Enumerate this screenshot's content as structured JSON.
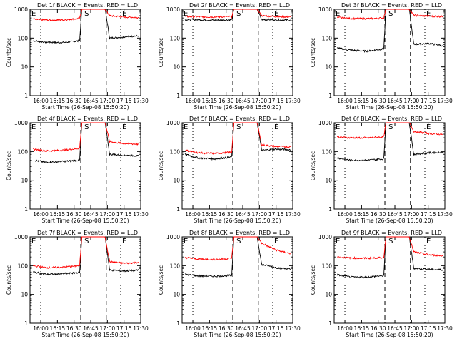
{
  "colors": {
    "events": "#000000",
    "lld": "#ff0000",
    "axes": "#000000",
    "background": "#ffffff"
  },
  "chart_data": [
    {
      "type": "line",
      "title": "Det 1f BLACK = Events, RED = LLD",
      "xlabel": "Start Time (26-Sep-08 15:50:20)",
      "ylabel": "Counts/sec",
      "y_scale": "log",
      "ylim": [
        1,
        1000
      ],
      "xlim": [
        "15:50:20",
        "17:30"
      ],
      "x_ticks": [
        "16:00",
        "16:15",
        "16:30",
        "16:45",
        "17:00",
        "17:15",
        "17:30"
      ],
      "y_ticks": [
        "1",
        "10",
        "100",
        "1000"
      ],
      "markers": [
        {
          "label": "E",
          "time": "15:50:20",
          "style": "none"
        },
        {
          "label": "",
          "time": "16:00",
          "style": "dotted"
        },
        {
          "label": "",
          "time": "16:36",
          "style": "dashed"
        },
        {
          "label": "S",
          "time": "16:38",
          "style": "none"
        },
        {
          "label": "",
          "time": "16:59",
          "style": "dashed"
        },
        {
          "label": "E",
          "time": "17:12",
          "style": "dotted"
        }
      ],
      "series": [
        {
          "name": "Events",
          "color": "#000000",
          "x": [
            "15:53",
            "16:05",
            "16:20",
            "16:35",
            "16:37",
            "16:58",
            "17:02",
            "17:15",
            "17:28"
          ],
          "y": [
            80,
            72,
            70,
            80,
            1000,
            1000,
            100,
            110,
            120
          ]
        },
        {
          "name": "LLD",
          "color": "#ff0000",
          "x": [
            "15:53",
            "16:05",
            "16:20",
            "16:35",
            "16:37",
            "16:58",
            "17:02",
            "17:15",
            "17:28"
          ],
          "y": [
            450,
            420,
            430,
            480,
            1000,
            1000,
            600,
            540,
            520
          ]
        }
      ]
    },
    {
      "type": "line",
      "title": "Det 2f BLACK = Events, RED = LLD",
      "xlabel": "Start Time (26-Sep-08 15:50:20)",
      "ylabel": "Counts/sec",
      "y_scale": "log",
      "ylim": [
        1,
        1000
      ],
      "xlim": [
        "15:50:20",
        "17:30"
      ],
      "x_ticks": [
        "16:00",
        "16:15",
        "16:30",
        "16:45",
        "17:00",
        "17:15",
        "17:30"
      ],
      "y_ticks": [
        "1",
        "10",
        "100",
        "1000"
      ],
      "markers": [
        {
          "label": "E",
          "time": "15:50:20",
          "style": "none"
        },
        {
          "label": "",
          "time": "16:00",
          "style": "dotted"
        },
        {
          "label": "",
          "time": "16:36",
          "style": "dashed"
        },
        {
          "label": "S",
          "time": "16:38",
          "style": "none"
        },
        {
          "label": "",
          "time": "16:59",
          "style": "dashed"
        },
        {
          "label": "E",
          "time": "17:12",
          "style": "dotted"
        }
      ],
      "series": [
        {
          "name": "Events",
          "color": "#000000",
          "x": [
            "15:53",
            "16:05",
            "16:20",
            "16:35",
            "16:37",
            "16:58",
            "17:02",
            "17:15",
            "17:28"
          ],
          "y": [
            440,
            430,
            420,
            430,
            1000,
            1000,
            440,
            430,
            420
          ]
        },
        {
          "name": "LLD",
          "color": "#ff0000",
          "x": [
            "15:53",
            "16:05",
            "16:20",
            "16:35",
            "16:37",
            "16:58",
            "17:02",
            "17:15",
            "17:28"
          ],
          "y": [
            560,
            550,
            540,
            560,
            1000,
            1000,
            600,
            560,
            540
          ]
        }
      ]
    },
    {
      "type": "line",
      "title": "Det 3f BLACK = Events, RED = LLD",
      "xlabel": "Start Time (26-Sep-08 15:50:20)",
      "ylabel": "Counts/sec",
      "y_scale": "log",
      "ylim": [
        1,
        1000
      ],
      "xlim": [
        "15:50:20",
        "17:30"
      ],
      "x_ticks": [
        "16:00",
        "16:15",
        "16:30",
        "16:45",
        "17:00",
        "17:15",
        "17:30"
      ],
      "y_ticks": [
        "1",
        "10",
        "100",
        "1000"
      ],
      "markers": [
        {
          "label": "E",
          "time": "15:50:20",
          "style": "none"
        },
        {
          "label": "",
          "time": "16:00",
          "style": "dotted"
        },
        {
          "label": "",
          "time": "16:36",
          "style": "dashed"
        },
        {
          "label": "S",
          "time": "16:38",
          "style": "none"
        },
        {
          "label": "",
          "time": "16:59",
          "style": "dashed"
        },
        {
          "label": "E",
          "time": "17:12",
          "style": "dotted"
        }
      ],
      "series": [
        {
          "name": "Events",
          "color": "#000000",
          "x": [
            "15:53",
            "16:05",
            "16:20",
            "16:35",
            "16:37",
            "16:58",
            "17:02",
            "17:15",
            "17:28"
          ],
          "y": [
            45,
            38,
            35,
            42,
            1000,
            1000,
            60,
            65,
            55
          ]
        },
        {
          "name": "LLD",
          "color": "#ff0000",
          "x": [
            "15:53",
            "16:05",
            "16:20",
            "16:35",
            "16:37",
            "16:58",
            "17:02",
            "17:15",
            "17:28"
          ],
          "y": [
            520,
            480,
            470,
            500,
            1000,
            1000,
            620,
            580,
            560
          ]
        }
      ]
    },
    {
      "type": "line",
      "title": "Det 4f BLACK = Events, RED = LLD",
      "xlabel": "Start Time (26-Sep-08 15:50:20)",
      "ylabel": "Counts/sec",
      "y_scale": "log",
      "ylim": [
        1,
        1000
      ],
      "xlim": [
        "15:50:20",
        "17:30"
      ],
      "x_ticks": [
        "16:00",
        "16:15",
        "16:30",
        "16:45",
        "17:00",
        "17:15",
        "17:30"
      ],
      "y_ticks": [
        "1",
        "10",
        "100",
        "1000"
      ],
      "markers": [
        {
          "label": "E",
          "time": "15:50:20",
          "style": "none"
        },
        {
          "label": "",
          "time": "16:00",
          "style": "dotted"
        },
        {
          "label": "",
          "time": "16:36",
          "style": "dashed"
        },
        {
          "label": "S",
          "time": "16:38",
          "style": "none"
        },
        {
          "label": "",
          "time": "16:59",
          "style": "dashed"
        },
        {
          "label": "E",
          "time": "17:12",
          "style": "dotted"
        }
      ],
      "series": [
        {
          "name": "Events",
          "color": "#000000",
          "x": [
            "15:53",
            "16:05",
            "16:20",
            "16:35",
            "16:37",
            "16:58",
            "17:02",
            "17:15",
            "17:28"
          ],
          "y": [
            50,
            42,
            45,
            50,
            1000,
            1000,
            80,
            75,
            70
          ]
        },
        {
          "name": "LLD",
          "color": "#ff0000",
          "x": [
            "15:53",
            "16:05",
            "16:20",
            "16:35",
            "16:37",
            "16:58",
            "17:02",
            "17:15",
            "17:28"
          ],
          "y": [
            120,
            105,
            110,
            130,
            1000,
            1000,
            220,
            190,
            180
          ]
        }
      ]
    },
    {
      "type": "line",
      "title": "Det 5f BLACK = Events, RED = LLD",
      "xlabel": "Start Time (26-Sep-08 15:50:20)",
      "ylabel": "Counts/sec",
      "y_scale": "log",
      "ylim": [
        1,
        1000
      ],
      "xlim": [
        "15:50:20",
        "17:30"
      ],
      "x_ticks": [
        "16:00",
        "16:15",
        "16:30",
        "16:45",
        "17:00",
        "17:15",
        "17:30"
      ],
      "y_ticks": [
        "1",
        "10",
        "100",
        "1000"
      ],
      "markers": [
        {
          "label": "E",
          "time": "15:50:20",
          "style": "none"
        },
        {
          "label": "",
          "time": "16:00",
          "style": "dotted"
        },
        {
          "label": "",
          "time": "16:36",
          "style": "dashed"
        },
        {
          "label": "S",
          "time": "16:38",
          "style": "none"
        },
        {
          "label": "",
          "time": "16:59",
          "style": "dashed"
        },
        {
          "label": "E",
          "time": "17:12",
          "style": "dotted"
        }
      ],
      "series": [
        {
          "name": "Events",
          "color": "#000000",
          "x": [
            "15:53",
            "16:05",
            "16:20",
            "16:35",
            "16:37",
            "16:58",
            "17:02",
            "17:15",
            "17:28"
          ],
          "y": [
            80,
            60,
            55,
            65,
            1000,
            1000,
            110,
            120,
            115
          ]
        },
        {
          "name": "LLD",
          "color": "#ff0000",
          "x": [
            "15:53",
            "16:05",
            "16:20",
            "16:35",
            "16:37",
            "16:58",
            "17:02",
            "17:15",
            "17:28"
          ],
          "y": [
            110,
            90,
            85,
            95,
            1000,
            1000,
            170,
            150,
            145
          ]
        }
      ]
    },
    {
      "type": "line",
      "title": "Det 6f BLACK = Events, RED = LLD",
      "xlabel": "Start Time (26-Sep-08 15:50:20)",
      "ylabel": "Counts/sec",
      "y_scale": "log",
      "ylim": [
        1,
        1000
      ],
      "xlim": [
        "15:50:20",
        "17:30"
      ],
      "x_ticks": [
        "16:00",
        "16:15",
        "16:30",
        "16:45",
        "17:00",
        "17:15",
        "17:30"
      ],
      "y_ticks": [
        "1",
        "10",
        "100",
        "1000"
      ],
      "markers": [
        {
          "label": "E",
          "time": "15:50:20",
          "style": "none"
        },
        {
          "label": "",
          "time": "16:00",
          "style": "dotted"
        },
        {
          "label": "",
          "time": "16:36",
          "style": "dashed"
        },
        {
          "label": "S",
          "time": "16:38",
          "style": "none"
        },
        {
          "label": "",
          "time": "16:59",
          "style": "dashed"
        },
        {
          "label": "E",
          "time": "17:12",
          "style": "dotted"
        }
      ],
      "series": [
        {
          "name": "Events",
          "color": "#000000",
          "x": [
            "15:53",
            "16:05",
            "16:20",
            "16:35",
            "16:37",
            "16:58",
            "17:02",
            "17:15",
            "17:28"
          ],
          "y": [
            60,
            50,
            50,
            55,
            1000,
            1000,
            80,
            90,
            95
          ]
        },
        {
          "name": "LLD",
          "color": "#ff0000",
          "x": [
            "15:53",
            "16:05",
            "16:20",
            "16:35",
            "16:37",
            "16:58",
            "17:02",
            "17:15",
            "17:28"
          ],
          "y": [
            320,
            300,
            300,
            320,
            1000,
            1000,
            500,
            420,
            400
          ]
        }
      ]
    },
    {
      "type": "line",
      "title": "Det 7f BLACK = Events, RED = LLD",
      "xlabel": "Start Time (26-Sep-08 15:50:20)",
      "ylabel": "Counts/sec",
      "y_scale": "log",
      "ylim": [
        1,
        1000
      ],
      "xlim": [
        "15:50:20",
        "17:30"
      ],
      "x_ticks": [
        "16:00",
        "16:15",
        "16:30",
        "16:45",
        "17:00",
        "17:15",
        "17:30"
      ],
      "y_ticks": [
        "1",
        "10",
        "100",
        "1000"
      ],
      "markers": [
        {
          "label": "E",
          "time": "15:50:20",
          "style": "none"
        },
        {
          "label": "",
          "time": "16:00",
          "style": "dotted"
        },
        {
          "label": "",
          "time": "16:36",
          "style": "dashed"
        },
        {
          "label": "S",
          "time": "16:38",
          "style": "none"
        },
        {
          "label": "",
          "time": "16:59",
          "style": "dashed"
        },
        {
          "label": "E",
          "time": "17:12",
          "style": "dotted"
        }
      ],
      "series": [
        {
          "name": "Events",
          "color": "#000000",
          "x": [
            "15:53",
            "16:05",
            "16:20",
            "16:35",
            "16:37",
            "16:58",
            "17:02",
            "17:15",
            "17:28"
          ],
          "y": [
            60,
            50,
            52,
            58,
            1000,
            1000,
            70,
            65,
            70
          ]
        },
        {
          "name": "LLD",
          "color": "#ff0000",
          "x": [
            "15:53",
            "16:05",
            "16:20",
            "16:35",
            "16:37",
            "16:58",
            "17:02",
            "17:15",
            "17:28"
          ],
          "y": [
            100,
            85,
            88,
            100,
            1000,
            1000,
            140,
            120,
            130
          ]
        }
      ]
    },
    {
      "type": "line",
      "title": "Det 8f BLACK = Events, RED = LLD",
      "xlabel": "Start Time (26-Sep-08 15:50:20)",
      "ylabel": "Counts/sec",
      "y_scale": "log",
      "ylim": [
        1,
        1000
      ],
      "xlim": [
        "15:50:20",
        "17:30"
      ],
      "x_ticks": [
        "16:00",
        "16:15",
        "16:30",
        "16:45",
        "17:00",
        "17:15",
        "17:30"
      ],
      "y_ticks": [
        "1",
        "10",
        "100",
        "1000"
      ],
      "markers": [
        {
          "label": "E",
          "time": "15:50:20",
          "style": "none"
        },
        {
          "label": "",
          "time": "16:00",
          "style": "dotted"
        },
        {
          "label": "",
          "time": "16:36",
          "style": "dashed"
        },
        {
          "label": "S",
          "time": "16:38",
          "style": "none"
        },
        {
          "label": "",
          "time": "16:59",
          "style": "dashed"
        },
        {
          "label": "E",
          "time": "17:12",
          "style": "dotted"
        }
      ],
      "series": [
        {
          "name": "Events",
          "color": "#000000",
          "x": [
            "15:53",
            "16:05",
            "16:20",
            "16:35",
            "16:37",
            "16:58",
            "17:02",
            "17:15",
            "17:28"
          ],
          "y": [
            50,
            44,
            43,
            46,
            1000,
            1000,
            110,
            85,
            75
          ]
        },
        {
          "name": "LLD",
          "color": "#ff0000",
          "x": [
            "15:53",
            "16:05",
            "16:20",
            "16:35",
            "16:37",
            "16:58",
            "17:02",
            "17:15",
            "17:28"
          ],
          "y": [
            190,
            170,
            165,
            180,
            1000,
            1000,
            600,
            350,
            260
          ]
        }
      ]
    },
    {
      "type": "line",
      "title": "Det 9f BLACK = Events, RED = LLD",
      "xlabel": "Start Time (26-Sep-08 15:50:20)",
      "ylabel": "Counts/sec",
      "y_scale": "log",
      "ylim": [
        1,
        1000
      ],
      "xlim": [
        "15:50:20",
        "17:30"
      ],
      "x_ticks": [
        "16:00",
        "16:15",
        "16:30",
        "16:45",
        "17:00",
        "17:15",
        "17:30"
      ],
      "y_ticks": [
        "1",
        "10",
        "100",
        "1000"
      ],
      "markers": [
        {
          "label": "E",
          "time": "15:50:20",
          "style": "none"
        },
        {
          "label": "",
          "time": "16:00",
          "style": "dotted"
        },
        {
          "label": "",
          "time": "16:36",
          "style": "dashed"
        },
        {
          "label": "S",
          "time": "16:38",
          "style": "none"
        },
        {
          "label": "",
          "time": "16:59",
          "style": "dashed"
        },
        {
          "label": "E",
          "time": "17:12",
          "style": "dotted"
        }
      ],
      "series": [
        {
          "name": "Events",
          "color": "#000000",
          "x": [
            "15:53",
            "16:05",
            "16:20",
            "16:35",
            "16:37",
            "16:58",
            "17:02",
            "17:15",
            "17:28"
          ],
          "y": [
            48,
            40,
            40,
            45,
            1000,
            1000,
            80,
            75,
            72
          ]
        },
        {
          "name": "LLD",
          "color": "#ff0000",
          "x": [
            "15:53",
            "16:05",
            "16:20",
            "16:35",
            "16:37",
            "16:58",
            "17:02",
            "17:15",
            "17:28"
          ],
          "y": [
            200,
            185,
            180,
            190,
            1000,
            1000,
            300,
            240,
            220
          ]
        }
      ]
    }
  ]
}
